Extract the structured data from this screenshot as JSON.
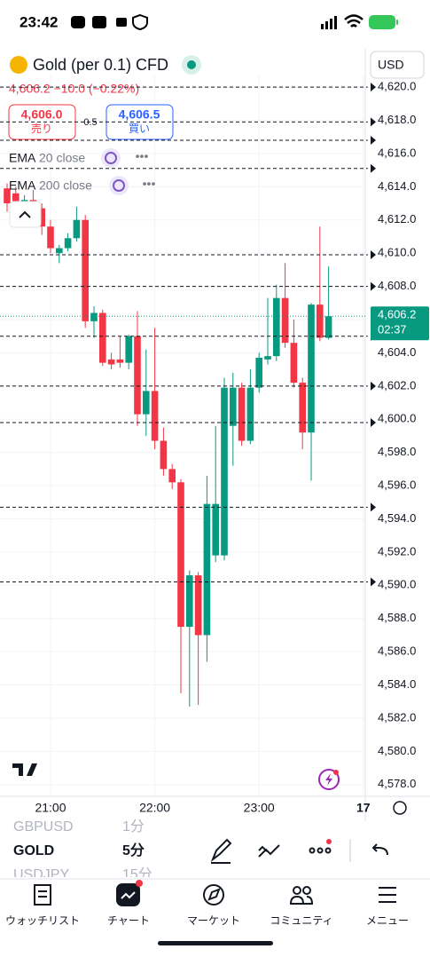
{
  "status_bar": {
    "time": "23:42"
  },
  "header": {
    "symbol": "Gold (per 0.1) CFD",
    "currency": "USD",
    "quote": "4,606.2 −10.0 (−0.22%)",
    "sell": {
      "price": "4,606.0",
      "label": "売り"
    },
    "spread": "0.5",
    "buy": {
      "price": "4,606.5",
      "label": "買い"
    },
    "indicators": [
      {
        "name": "EMA",
        "params": "20 close"
      },
      {
        "name": "EMA",
        "params": "200 close"
      }
    ]
  },
  "chart_data": {
    "type": "candlestick",
    "categories": [
      null,
      null,
      null,
      null,
      null,
      "21:00",
      null,
      null,
      null,
      null,
      null,
      null,
      null,
      null,
      null,
      null,
      null,
      "22:00",
      null,
      null,
      null,
      null,
      null,
      null,
      null,
      null,
      null,
      null,
      null,
      "23:00",
      null,
      null,
      null,
      null,
      null,
      null,
      null,
      null,
      null,
      null,
      null,
      "17"
    ],
    "open": [
      4613.9,
      4613.6,
      4612.6,
      4613.2,
      4612.7,
      4611.6,
      4610.0,
      4610.3,
      4610.9,
      4612.0,
      4605.9,
      4606.4,
      4603.6,
      4603.6,
      4603.4,
      4605.0,
      4600.3,
      4601.7,
      4598.7,
      4597.0,
      4596.2,
      4587.5,
      4590.6,
      4587.0,
      4591.8,
      4591.8,
      4599.6,
      4601.9,
      4598.7,
      4601.9,
      4603.6,
      4603.8,
      4607.3,
      4604.6,
      4602.2,
      4599.2,
      4606.9,
      4604.9,
      null,
      null,
      null,
      null
    ],
    "high": [
      4614.2,
      4614.0,
      4613.5,
      4613.8,
      4613.0,
      4612.0,
      4610.5,
      4611.2,
      4612.8,
      4612.3,
      4606.8,
      4606.6,
      4604.0,
      4605.0,
      4605.1,
      4606.5,
      4604.2,
      4605.5,
      4599.5,
      4597.3,
      4596.4,
      4590.9,
      4590.8,
      4596.6,
      4599.6,
      4602.5,
      4602.8,
      4602.2,
      4603.0,
      4604.0,
      4607.3,
      4608.1,
      4609.4,
      4606.0,
      4602.5,
      4607.0,
      4611.6,
      4609.2,
      null,
      null,
      null,
      null
    ],
    "low": [
      4612.5,
      4612.2,
      4612.0,
      4611.8,
      4611.1,
      4610.0,
      4609.4,
      4610.1,
      4610.7,
      4605.5,
      4604.9,
      4603.2,
      4603.0,
      4603.1,
      4603.0,
      4599.6,
      4599.0,
      4598.2,
      4596.6,
      4595.8,
      4583.5,
      4582.7,
      4582.8,
      4585.4,
      4591.4,
      4591.5,
      4597.2,
      4598.4,
      4598.5,
      4601.6,
      4603.3,
      4603.5,
      4604.3,
      4601.9,
      4598.2,
      4596.3,
      4604.7,
      4604.8,
      null,
      null,
      null,
      null
    ],
    "close": [
      4613.0,
      4612.6,
      4613.2,
      4612.7,
      4611.6,
      4610.3,
      4610.3,
      4610.9,
      4612.0,
      4605.9,
      4606.4,
      4603.4,
      4603.3,
      4603.4,
      4605.0,
      4600.3,
      4601.7,
      4598.7,
      4597.0,
      4596.2,
      4587.5,
      4590.6,
      4587.0,
      4594.9,
      4594.9,
      4601.9,
      4601.9,
      4598.7,
      4601.9,
      4603.7,
      4603.8,
      4607.3,
      4604.6,
      4602.2,
      4599.2,
      4606.9,
      4604.9,
      4606.2,
      null,
      null,
      null,
      null
    ],
    "up_color": "#089981",
    "down_color": "#f23645",
    "ylim": [
      4577.4,
      4620.7
    ],
    "yticks": [
      {
        "value": 4578,
        "label": "4,578.0"
      },
      {
        "value": 4580,
        "label": "4,580.0"
      },
      {
        "value": 4582,
        "label": "4,582.0"
      },
      {
        "value": 4584,
        "label": "4,584.0"
      },
      {
        "value": 4586,
        "label": "4,586.0"
      },
      {
        "value": 4588,
        "label": "4,588.0"
      },
      {
        "value": 4590,
        "label": "4,590.0"
      },
      {
        "value": 4592,
        "label": "4,592.0"
      },
      {
        "value": 4594,
        "label": "4,594.0"
      },
      {
        "value": 4596,
        "label": "4,596.0"
      },
      {
        "value": 4598,
        "label": "4,598.0"
      },
      {
        "value": 4600,
        "label": "4,600.0"
      },
      {
        "value": 4602,
        "label": "4,602.0"
      },
      {
        "value": 4604,
        "label": "4,604.0"
      },
      {
        "value": 4606,
        "label": "4,606.0"
      },
      {
        "value": 4608,
        "label": "4,608.0"
      },
      {
        "value": 4610,
        "label": "4,610.0"
      },
      {
        "value": 4612,
        "label": "4,612.0"
      },
      {
        "value": 4614,
        "label": "4,614.0"
      },
      {
        "value": 4616,
        "label": "4,616.0"
      },
      {
        "value": 4618,
        "label": "4,618.0"
      },
      {
        "value": 4620,
        "label": "4,620.0"
      }
    ],
    "grid": true,
    "price_lines": [
      4620.0,
      4617.9,
      4616.8,
      4615.1,
      4609.9,
      4608.0,
      4605.0,
      4602.0,
      4599.8,
      4594.7,
      4590.2
    ],
    "last_price": {
      "value": 4606.2,
      "label": "4,606.2"
    },
    "countdown": "02:37",
    "last_price_color": "#089981"
  },
  "symbol_picker": {
    "symbols": [
      "GBPUSD",
      "GOLD",
      "USDJPY"
    ],
    "intervals": [
      "1分",
      "5分",
      "15分"
    ]
  },
  "nav": [
    "ウォッチリスト",
    "チャート",
    "マーケット",
    "コミュニティ",
    "メニュー"
  ]
}
